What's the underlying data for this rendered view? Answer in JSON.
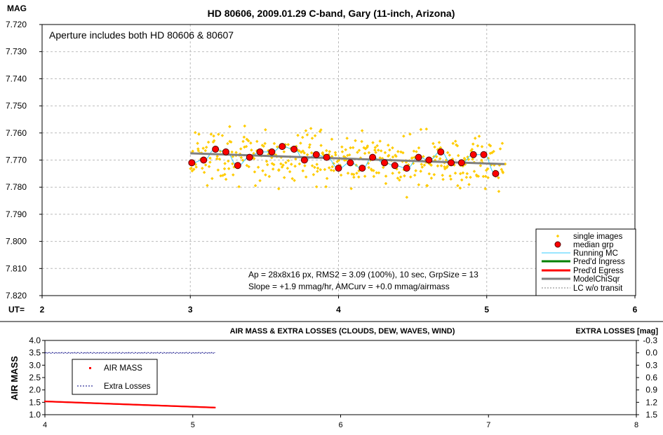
{
  "top_chart": {
    "title": "HD 80606, 2009.01.29 C-band, Gary (11-inch, Arizona)",
    "ylabel": "MAG",
    "xlabel_prefix": "UT=",
    "note": "Aperture includes both HD 80606 & 80607",
    "stats_line1": "Ap = 28x8x16 px, RMS2 = 3.09 (100%), 10 sec, GrpSize = 13",
    "stats_line2": "Slope = +1.9 mmag/hr, AMCurv = +0.0 mmag/airmass",
    "legend": [
      {
        "label": "single images",
        "kind": "diamond",
        "color": "#FFCC00"
      },
      {
        "label": "median grp",
        "kind": "circle",
        "color": "#FF0000"
      },
      {
        "label": "Running MC",
        "kind": "line",
        "color": "#33CCFF"
      },
      {
        "label": "Pred'd Ingress",
        "kind": "line",
        "color": "#008000"
      },
      {
        "label": "Pred'd Egress",
        "kind": "line",
        "color": "#FF0000"
      },
      {
        "label": "ModelChiSqr",
        "kind": "line",
        "color": "#808080"
      },
      {
        "label": "LC w/o transit",
        "kind": "dash",
        "color": "#808080"
      }
    ]
  },
  "bottom_chart": {
    "title": "AIR MASS & EXTRA LOSSES (CLOUDS, DEW, WAVES, WIND)",
    "ylabel_left": "AIR MASS",
    "ylabel_right": "EXTRA LOSSES [mag]",
    "legend": [
      {
        "label": "AIR MASS",
        "kind": "square",
        "color": "#FF0000"
      },
      {
        "label": "Extra Losses",
        "kind": "dash",
        "color": "#000080"
      }
    ]
  },
  "chart_data": [
    {
      "type": "scatter",
      "title": "HD 80606, 2009.01.29 C-band, Gary (11-inch, Arizona)",
      "xlabel": "UT=",
      "ylabel": "MAG",
      "xlim": [
        2,
        6
      ],
      "ylim": [
        7.72,
        7.82
      ],
      "y_inverted": true,
      "x_ticks": [
        "2",
        "3",
        "4",
        "5",
        "6"
      ],
      "y_ticks": [
        "7.720",
        "7.730",
        "7.740",
        "7.750",
        "7.760",
        "7.770",
        "7.780",
        "7.790",
        "7.800",
        "7.810",
        "7.820"
      ],
      "grid": true,
      "legend_position": "bottom-right",
      "series": [
        {
          "name": "single images",
          "style": "scatter",
          "x_range": [
            3.0,
            5.12
          ],
          "center": 7.77,
          "spread": 0.009,
          "count": 420
        },
        {
          "name": "median grp",
          "style": "markers",
          "x": [
            3.01,
            3.09,
            3.17,
            3.24,
            3.32,
            3.4,
            3.47,
            3.55,
            3.62,
            3.7,
            3.77,
            3.85,
            3.92,
            4.0,
            4.08,
            4.16,
            4.23,
            4.31,
            4.38,
            4.46,
            4.54,
            4.61,
            4.69,
            4.76,
            4.83,
            4.91,
            4.98,
            5.06
          ],
          "y": [
            7.771,
            7.77,
            7.766,
            7.767,
            7.772,
            7.769,
            7.767,
            7.767,
            7.765,
            7.766,
            7.77,
            7.768,
            7.769,
            7.773,
            7.771,
            7.773,
            7.769,
            7.771,
            7.772,
            7.773,
            7.769,
            7.77,
            7.767,
            7.771,
            7.771,
            7.768,
            7.768,
            7.775
          ]
        },
        {
          "name": "ModelChiSqr",
          "style": "line",
          "x": [
            3.0,
            5.12
          ],
          "y": [
            7.7675,
            7.7715
          ]
        }
      ]
    },
    {
      "type": "line",
      "title": "AIR MASS & EXTRA LOSSES (CLOUDS, DEW, WAVES, WIND)",
      "xlabel": "",
      "ylabel": "AIR MASS",
      "xlim": [
        4,
        8
      ],
      "ylim": [
        1.0,
        4.0
      ],
      "y2label": "EXTRA LOSSES [mag]",
      "y2lim": [
        1.5,
        -0.3
      ],
      "x_ticks": [
        "4",
        "5",
        "6",
        "7",
        "8"
      ],
      "y_ticks": [
        "1.0",
        "1.5",
        "2.0",
        "2.5",
        "3.0",
        "3.5",
        "4.0"
      ],
      "y2_ticks": [
        "1.5",
        "1.2",
        "0.9",
        "0.6",
        "0.3",
        "0.0",
        "-0.3"
      ],
      "legend_position": "top-left",
      "series": [
        {
          "name": "AIR MASS",
          "axis": "left",
          "x": [
            4.0,
            5.15
          ],
          "y": [
            1.54,
            1.29
          ]
        },
        {
          "name": "Extra Losses",
          "axis": "right",
          "x": [
            4.0,
            5.15
          ],
          "y": [
            0.0,
            0.0
          ]
        }
      ]
    }
  ]
}
